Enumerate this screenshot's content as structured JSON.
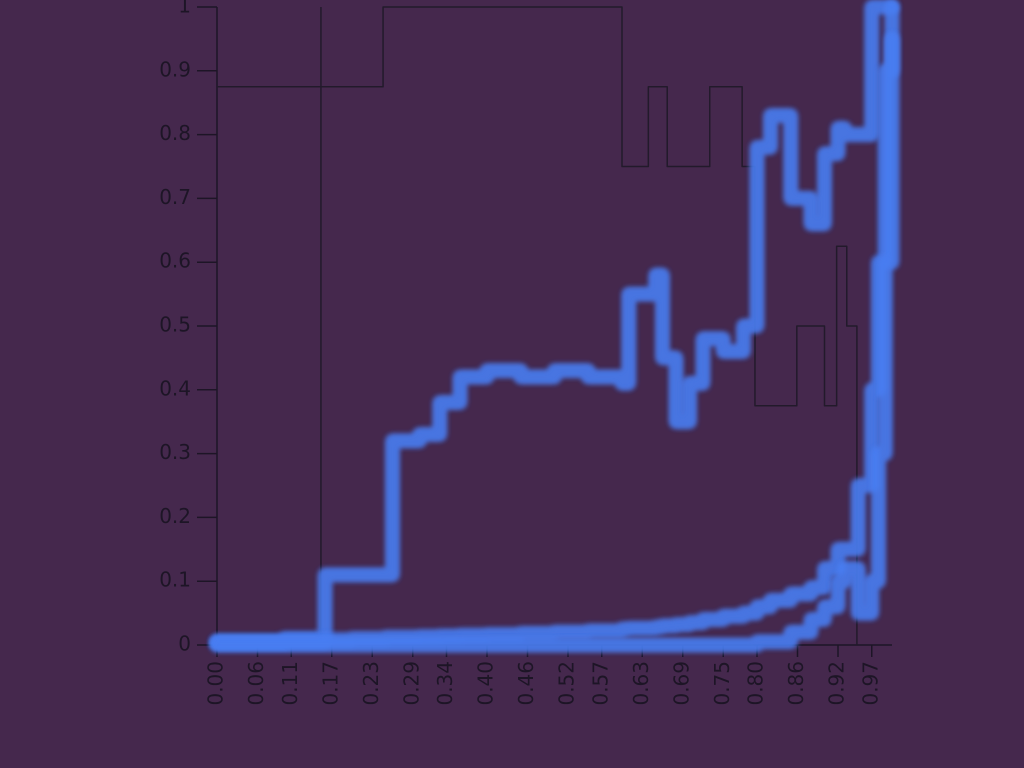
{
  "chart_data": {
    "type": "line",
    "step": "post",
    "background": "#45284d",
    "xlim": [
      0,
      1
    ],
    "ylim": [
      0,
      1
    ],
    "xticks": [
      {
        "value": 0,
        "label": "0.00"
      },
      {
        "value": 0.06,
        "label": "0.06"
      },
      {
        "value": 0.11,
        "label": "0.11"
      },
      {
        "value": 0.17,
        "label": "0.17"
      },
      {
        "value": 0.23,
        "label": "0.23"
      },
      {
        "value": 0.29,
        "label": "0.29"
      },
      {
        "value": 0.34,
        "label": "0.34"
      },
      {
        "value": 0.4,
        "label": "0.40"
      },
      {
        "value": 0.46,
        "label": "0.46"
      },
      {
        "value": 0.52,
        "label": "0.52"
      },
      {
        "value": 0.57,
        "label": "0.57"
      },
      {
        "value": 0.63,
        "label": "0.63"
      },
      {
        "value": 0.69,
        "label": "0.69"
      },
      {
        "value": 0.75,
        "label": "0.75"
      },
      {
        "value": 0.8,
        "label": "0.80"
      },
      {
        "value": 0.86,
        "label": "0.86"
      },
      {
        "value": 0.92,
        "label": "0.92"
      },
      {
        "value": 0.97,
        "label": "0.97"
      }
    ],
    "yticks": [
      0,
      0.1,
      0.2,
      0.3,
      0.4,
      0.5,
      0.6,
      0.7,
      0.8,
      0.9,
      1
    ],
    "vline": 0.154,
    "series": [
      {
        "color": "#221a2b",
        "glow": false,
        "x": [
          0,
          0.246,
          0.6,
          0.639,
          0.667,
          0.73,
          0.778,
          0.797,
          0.859,
          0.9,
          0.918,
          0.933,
          0.948
        ],
        "values": [
          0.875,
          1,
          0.75,
          0.875,
          0.75,
          0.875,
          0.75,
          0.375,
          0.5,
          0.375,
          0.625,
          0.5,
          0
        ]
      },
      {
        "color": "#4a7ef2",
        "glow": true,
        "x": [
          0,
          0.05,
          0.1,
          0.15,
          0.16,
          0.2,
          0.25,
          0.26,
          0.3,
          0.33,
          0.36,
          0.4,
          0.45,
          0.5,
          0.55,
          0.6,
          0.61,
          0.65,
          0.66,
          0.68,
          0.7,
          0.72,
          0.75,
          0.78,
          0.8,
          0.82,
          0.85,
          0.88,
          0.9,
          0.92,
          0.93,
          0.95,
          0.97,
          0.98,
          0.99,
          1
        ],
        "values": [
          0.005,
          0.005,
          0.01,
          0.01,
          0.11,
          0.11,
          0.11,
          0.32,
          0.33,
          0.38,
          0.42,
          0.43,
          0.42,
          0.43,
          0.42,
          0.41,
          0.55,
          0.58,
          0.45,
          0.35,
          0.41,
          0.48,
          0.46,
          0.5,
          0.78,
          0.83,
          0.7,
          0.66,
          0.77,
          0.81,
          0.8,
          0.8,
          1,
          1,
          1,
          1
        ]
      },
      {
        "color": "#4a7ef2",
        "glow": true,
        "x": [
          0,
          0.05,
          0.1,
          0.15,
          0.16,
          0.2,
          0.25,
          0.26,
          0.3,
          0.33,
          0.36,
          0.4,
          0.45,
          0.5,
          0.55,
          0.6,
          0.61,
          0.65,
          0.66,
          0.68,
          0.7,
          0.72,
          0.75,
          0.78,
          0.8,
          0.82,
          0.85,
          0.88,
          0.9,
          0.92,
          0.93,
          0.95,
          0.97,
          0.98,
          0.99,
          1
        ],
        "values": [
          0.005,
          0.005,
          0.005,
          0.005,
          0.008,
          0.01,
          0.012,
          0.012,
          0.013,
          0.014,
          0.015,
          0.016,
          0.018,
          0.02,
          0.022,
          0.025,
          0.026,
          0.028,
          0.03,
          0.032,
          0.035,
          0.04,
          0.045,
          0.05,
          0.06,
          0.07,
          0.08,
          0.09,
          0.12,
          0.15,
          0.15,
          0.25,
          0.4,
          0.6,
          0.9,
          1
        ]
      },
      {
        "color": "#4a7ef2",
        "glow": true,
        "x": [
          0,
          0.2,
          0.4,
          0.6,
          0.8,
          0.85,
          0.88,
          0.9,
          0.92,
          0.93,
          0.95,
          0.97,
          0.98,
          0.99,
          1
        ],
        "values": [
          0,
          0,
          0,
          0,
          0.005,
          0.02,
          0.04,
          0.06,
          0.1,
          0.12,
          0.05,
          0.1,
          0.3,
          0.6,
          0.95
        ]
      }
    ]
  }
}
